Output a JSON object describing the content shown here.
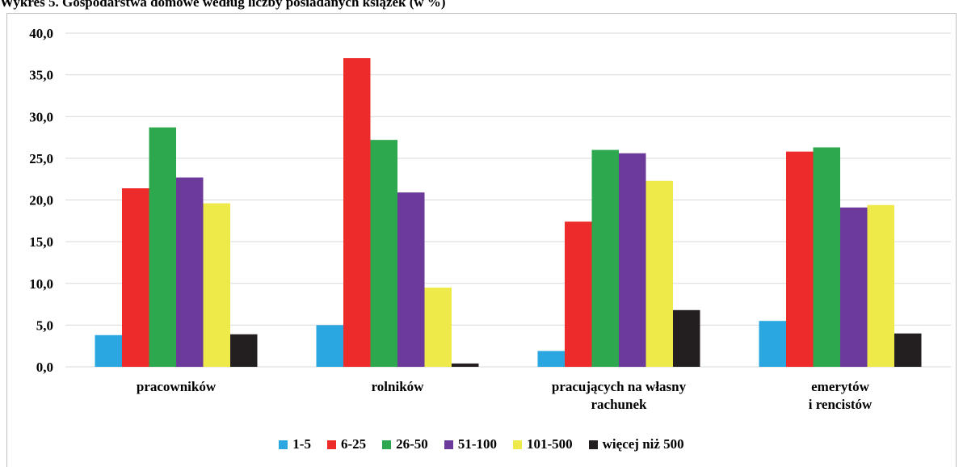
{
  "chart_data": {
    "type": "bar",
    "title": "Wykres 5. Gospodarstwa domowe według liczby posiadanych książek (w %)",
    "categories": [
      "pracowników",
      "rolników",
      "pracujących na własny rachunek",
      "emerytów\ni rencistów"
    ],
    "series": [
      {
        "name": "1-5",
        "color": "#2aa7e0",
        "values": [
          3.8,
          5.0,
          1.9,
          5.5
        ]
      },
      {
        "name": "6-25",
        "color": "#ee2b2b",
        "values": [
          21.4,
          37.0,
          17.4,
          25.8
        ]
      },
      {
        "name": "26-50",
        "color": "#2ea84f",
        "values": [
          28.7,
          27.2,
          26.0,
          26.3
        ]
      },
      {
        "name": "51-100",
        "color": "#6b3a9a",
        "values": [
          22.7,
          20.9,
          25.6,
          19.1
        ]
      },
      {
        "name": "101-500",
        "color": "#eeea4a",
        "values": [
          19.6,
          9.5,
          22.3,
          19.4
        ]
      },
      {
        "name": "więcej niż 500",
        "color": "#231f20",
        "values": [
          3.9,
          0.4,
          6.8,
          4.0
        ]
      }
    ],
    "ylim": [
      0,
      40
    ],
    "yticks": [
      {
        "value": 0,
        "label": "0,0"
      },
      {
        "value": 5,
        "label": "5,0"
      },
      {
        "value": 10,
        "label": "10,0"
      },
      {
        "value": 15,
        "label": "15,0"
      },
      {
        "value": 20,
        "label": "20,0"
      },
      {
        "value": 25,
        "label": "25,0"
      },
      {
        "value": 30,
        "label": "30,0"
      },
      {
        "value": 35,
        "label": "35,0"
      },
      {
        "value": 40,
        "label": "40,0"
      }
    ],
    "grid": true,
    "legend": "bottom"
  }
}
